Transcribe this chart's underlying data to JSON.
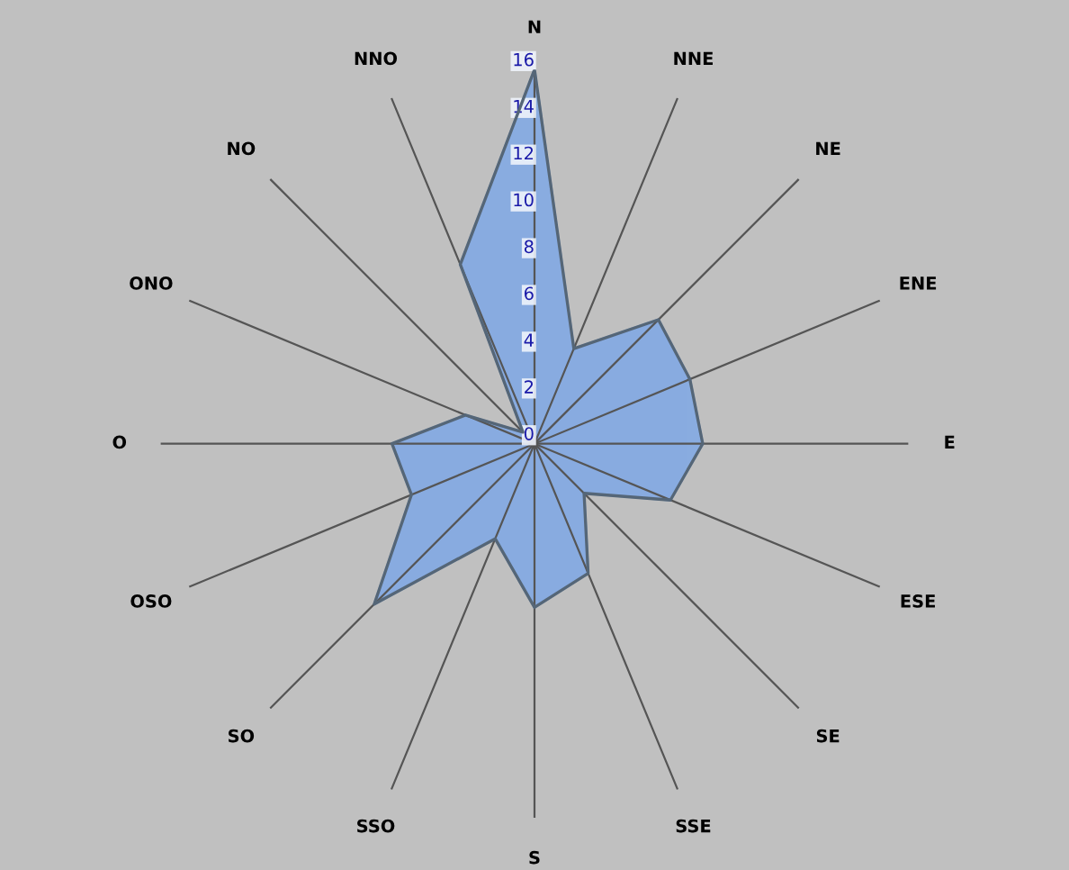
{
  "chart_data": {
    "type": "radar",
    "categories": [
      "N",
      "NNE",
      "NE",
      "ENE",
      "E",
      "ESE",
      "SE",
      "SSE",
      "S",
      "SSO",
      "SO",
      "OSO",
      "O",
      "ONO",
      "NO",
      "NNO"
    ],
    "series": [
      {
        "color": "#7fa8e6",
        "values": [
          16,
          4.4,
          7.5,
          7.2,
          7.2,
          6.3,
          3.0,
          6.0,
          7.0,
          4.4,
          9.7,
          5.7,
          6.1,
          3.2,
          0.7,
          8.3
        ]
      }
    ],
    "ylim": [
      0,
      16
    ],
    "yticks": [
      0,
      2,
      4,
      6,
      8,
      10,
      12,
      14,
      16
    ],
    "grid": "x",
    "legend": false
  }
}
